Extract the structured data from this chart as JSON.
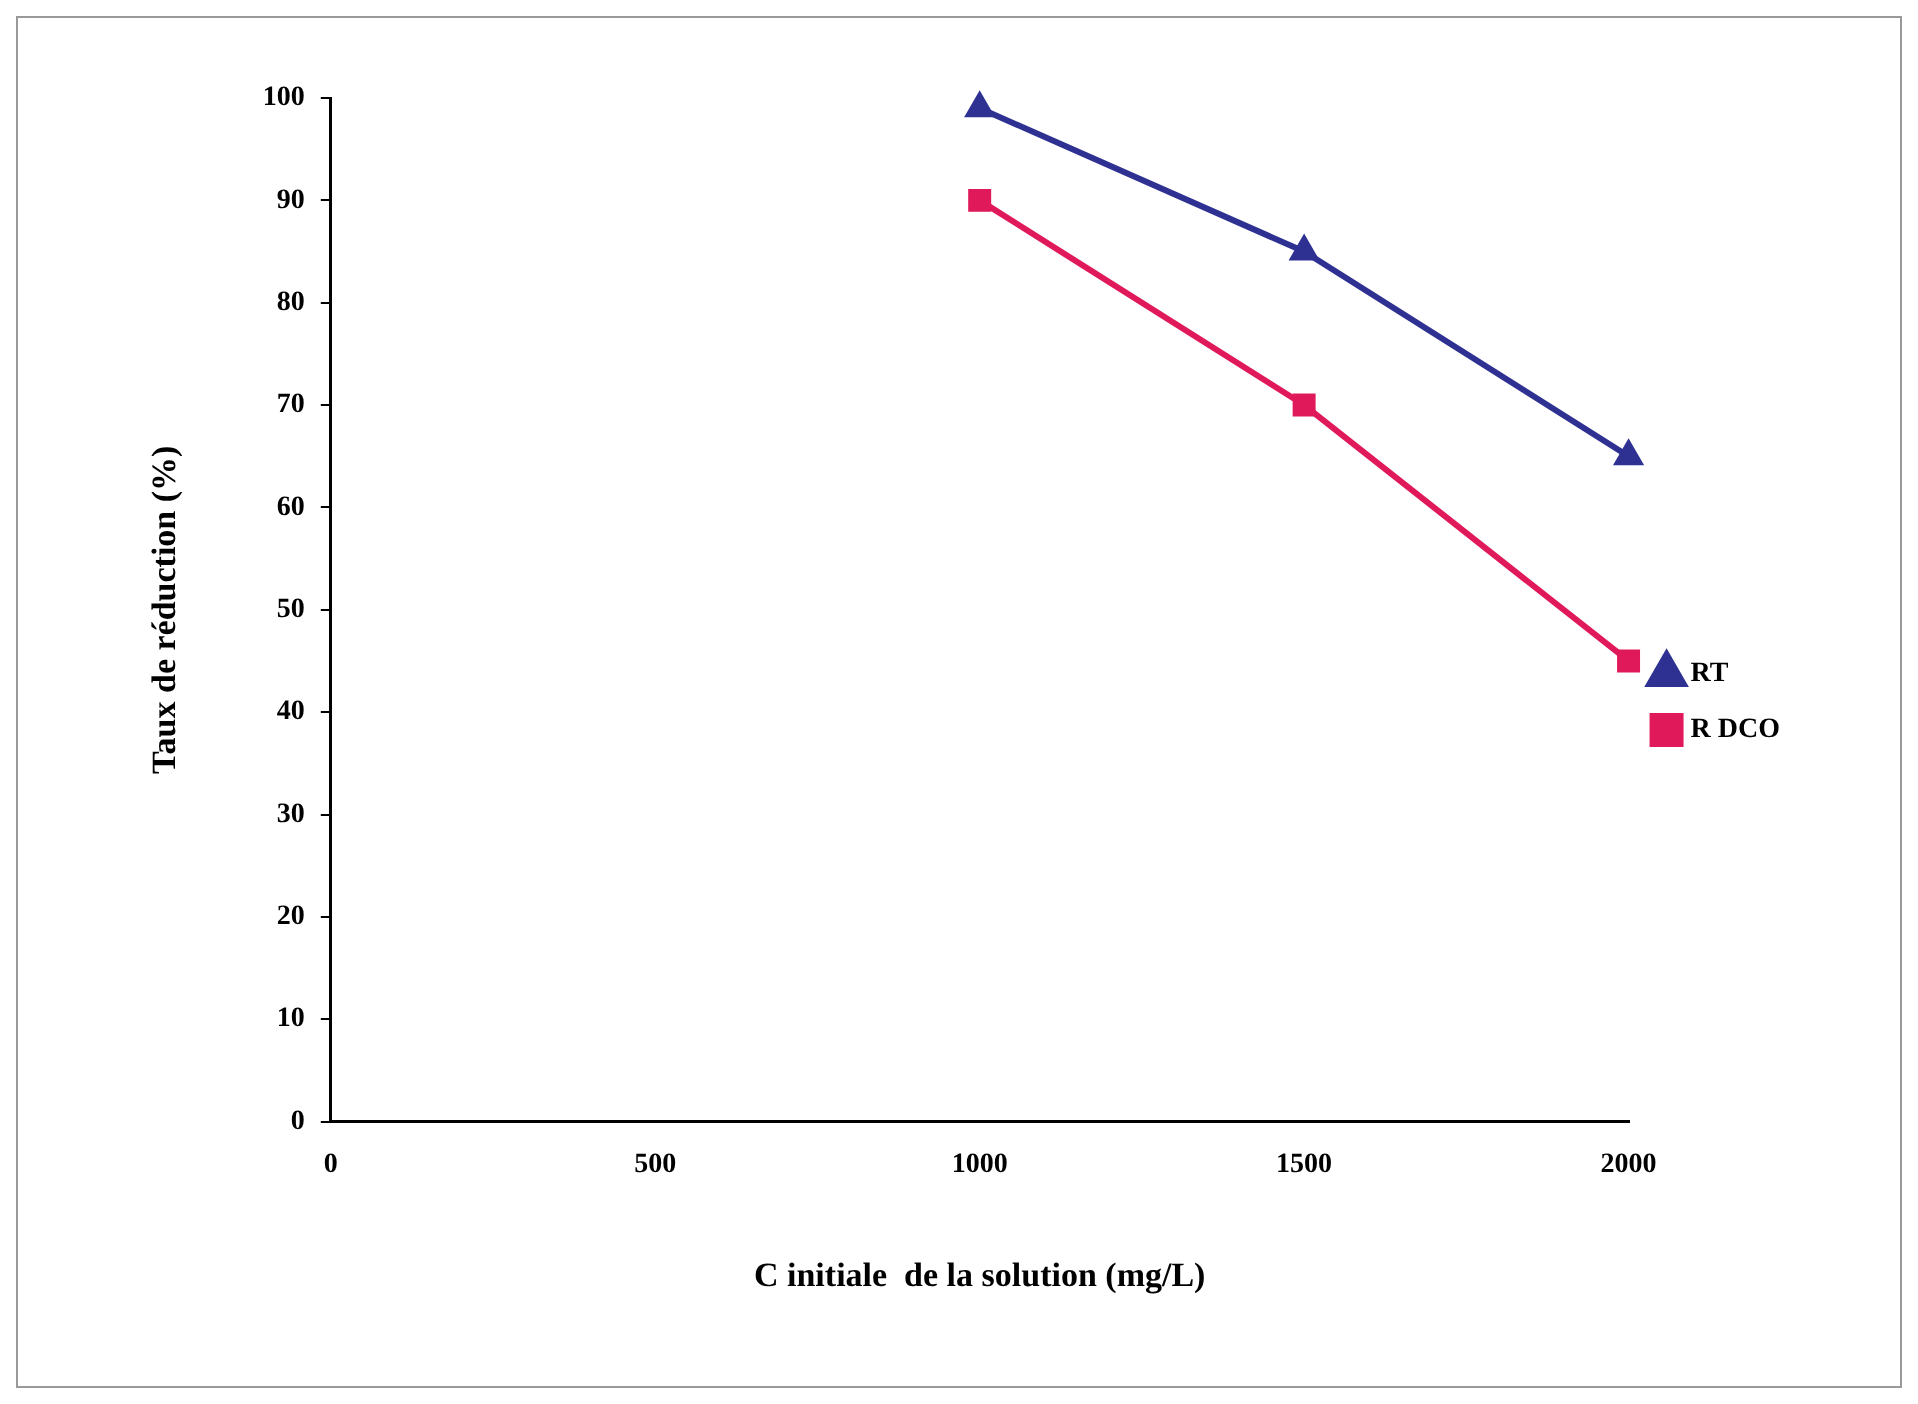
{
  "chart_data": {
    "type": "line",
    "xlabel": "C initiale  de la solution (mg/L)",
    "ylabel": "Taux de réduction (%)",
    "x": [
      1000,
      1500,
      2000
    ],
    "series": [
      {
        "name": "RT",
        "color": "#2e3192",
        "values": [
          99,
          85,
          65
        ],
        "marker": "triangle"
      },
      {
        "name": "R DCO",
        "color": "#e0195a",
        "values": [
          90,
          70,
          45
        ],
        "marker": "square"
      }
    ],
    "xlim": [
      0,
      2000
    ],
    "xticks": [
      0,
      500,
      1000,
      1500,
      2000
    ],
    "ylim": [
      0,
      100
    ],
    "yticks": [
      0,
      10,
      20,
      30,
      40,
      50,
      60,
      70,
      80,
      90,
      100
    ],
    "grid": false,
    "legend": "right",
    "line_style": "solid"
  }
}
